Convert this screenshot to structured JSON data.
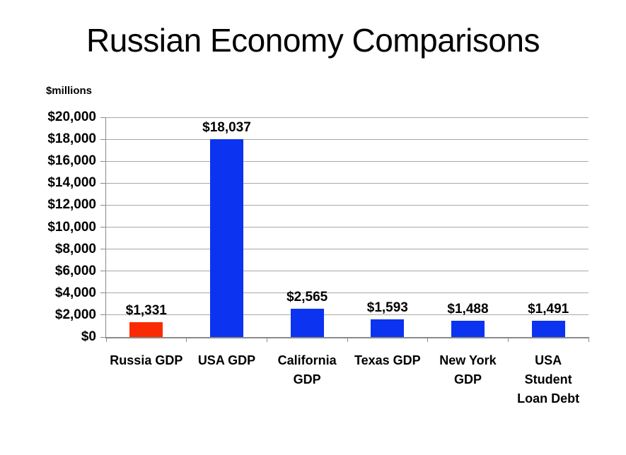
{
  "chart_data": {
    "type": "bar",
    "title": "Russian Economy Comparisons",
    "unit_label": "$millions",
    "xlabel": "",
    "ylabel": "$millions",
    "categories": [
      "Russia GDP",
      "USA GDP",
      "California\nGDP",
      "Texas GDP",
      "New York\nGDP",
      "USA\nStudent\nLoan Debt"
    ],
    "values": [
      1331,
      18037,
      2565,
      1593,
      1488,
      1491
    ],
    "value_labels": [
      "$1,331",
      "$18,037",
      "$2,565",
      "$1,593",
      "$1,488",
      "$1,491"
    ],
    "bar_colors": [
      "#FA2B02",
      "#0B33F0",
      "#0B33F0",
      "#0B33F0",
      "#0B33F0",
      "#0B33F0"
    ],
    "ylim": [
      0,
      20000
    ],
    "ytick_step": 2000,
    "yticks": [
      {
        "value": 0,
        "label": "$0"
      },
      {
        "value": 2000,
        "label": "$2,000"
      },
      {
        "value": 4000,
        "label": "$4,000"
      },
      {
        "value": 6000,
        "label": "$6,000"
      },
      {
        "value": 8000,
        "label": "$8,000"
      },
      {
        "value": 10000,
        "label": "$10,000"
      },
      {
        "value": 12000,
        "label": "$12,000"
      },
      {
        "value": 14000,
        "label": "$14,000"
      },
      {
        "value": 16000,
        "label": "$16,000"
      },
      {
        "value": 18000,
        "label": "$18,000"
      },
      {
        "value": 20000,
        "label": "$20,000"
      }
    ],
    "grid": true,
    "legend": "none",
    "colors": {
      "grid": "#A8A8A8",
      "axis": "#8A8A8A",
      "text": "#000000",
      "background": "#FFFFFF",
      "highlight_bar": "#FA2B02",
      "default_bar": "#0B33F0"
    }
  }
}
